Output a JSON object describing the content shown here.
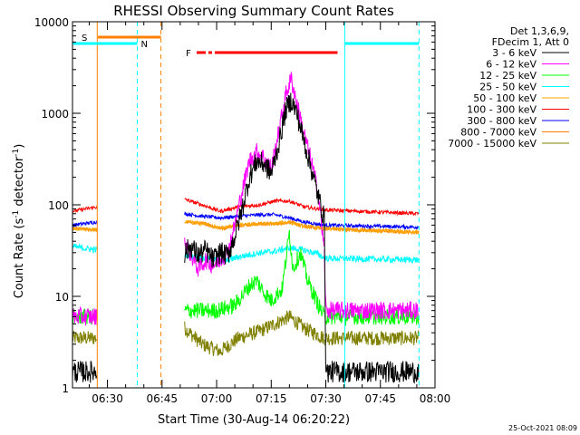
{
  "chart_data": {
    "type": "line",
    "title": "RHESSI Observing Summary Count Rates",
    "xlabel": "Start Time (30-Aug-14 06:20:22)",
    "ylabel_main": "Count Rate (s",
    "ylabel_sup1": "-1",
    "ylabel_mid": " detector",
    "ylabel_sup2": "-1",
    "ylabel_end": ")",
    "x_range_min": [
      20.4,
      120
    ],
    "y_scale": "log",
    "ylim": [
      1,
      10000
    ],
    "x_ticks": [
      {
        "label": "06:30",
        "min": 30
      },
      {
        "label": "06:45",
        "min": 45
      },
      {
        "label": "07:00",
        "min": 60
      },
      {
        "label": "07:15",
        "min": 75
      },
      {
        "label": "07:30",
        "min": 90
      },
      {
        "label": "07:45",
        "min": 105
      },
      {
        "label": "08:00",
        "min": 120
      }
    ],
    "y_ticks": [
      {
        "label": "1",
        "v": 1
      },
      {
        "label": "10",
        "v": 10
      },
      {
        "label": "100",
        "v": 100
      },
      {
        "label": "1000",
        "v": 1000
      },
      {
        "label": "10000",
        "v": 10000
      }
    ],
    "legend_header": [
      "Det 1,3,6,9,",
      "FDecim 1, Att 0"
    ],
    "legend_placement": "right",
    "series": [
      {
        "name": "3 - 6 keV",
        "color": "#000000"
      },
      {
        "name": "6 - 12 keV",
        "color": "#ff00ff"
      },
      {
        "name": "12 - 25 keV",
        "color": "#00ff00"
      },
      {
        "name": "25 - 50 keV",
        "color": "#00ffff"
      },
      {
        "name": "50 - 100 keV",
        "color": "#ffa500"
      },
      {
        "name": "100 - 300 keV",
        "color": "#ff0000"
      },
      {
        "name": "300 - 800 keV",
        "color": "#0000ff"
      },
      {
        "name": "800 - 7000 keV",
        "color": "#ff8000"
      },
      {
        "name": "7000 - 15000 keV",
        "color": "#808000"
      }
    ],
    "segments": [
      {
        "from": 20.4,
        "to": 27.2
      },
      {
        "from": 51.2,
        "to": 89.6
      },
      {
        "from": 89.6,
        "to": 115.6
      }
    ],
    "data": {
      "3 - 6 keV": [
        [
          20.4,
          1.5
        ],
        [
          27.2,
          1.5
        ],
        [
          51.2,
          30
        ],
        [
          53,
          35
        ],
        [
          55,
          28
        ],
        [
          57,
          32
        ],
        [
          59,
          25
        ],
        [
          61,
          30
        ],
        [
          63,
          28
        ],
        [
          65,
          45
        ],
        [
          67,
          90
        ],
        [
          69,
          200
        ],
        [
          71,
          300
        ],
        [
          73,
          280
        ],
        [
          75,
          220
        ],
        [
          77,
          450
        ],
        [
          79,
          1100
        ],
        [
          80.5,
          1400
        ],
        [
          82,
          1000
        ],
        [
          84,
          500
        ],
        [
          86,
          250
        ],
        [
          88,
          120
        ],
        [
          89.6,
          70
        ],
        [
          90,
          1.5
        ],
        [
          115.6,
          1.5
        ]
      ],
      "6 - 12 keV": [
        [
          20.4,
          6
        ],
        [
          27.2,
          6
        ],
        [
          51.2,
          40
        ],
        [
          53,
          28
        ],
        [
          55,
          20
        ],
        [
          57,
          25
        ],
        [
          59,
          22
        ],
        [
          61,
          25
        ],
        [
          63,
          30
        ],
        [
          65,
          60
        ],
        [
          67,
          140
        ],
        [
          69,
          300
        ],
        [
          71,
          380
        ],
        [
          73,
          330
        ],
        [
          75,
          250
        ],
        [
          77,
          600
        ],
        [
          79,
          1600
        ],
        [
          80.5,
          2400
        ],
        [
          82,
          1300
        ],
        [
          84,
          600
        ],
        [
          86,
          300
        ],
        [
          88,
          130
        ],
        [
          89.6,
          30
        ],
        [
          90,
          7
        ],
        [
          115.6,
          7
        ]
      ],
      "12 - 25 keV": [
        [
          20.4,
          6
        ],
        [
          27.2,
          6
        ],
        [
          51.2,
          7
        ],
        [
          60,
          7
        ],
        [
          65,
          8
        ],
        [
          69,
          13
        ],
        [
          71,
          15
        ],
        [
          73,
          11
        ],
        [
          75,
          9
        ],
        [
          78,
          12
        ],
        [
          80,
          50
        ],
        [
          81,
          20
        ],
        [
          83,
          30
        ],
        [
          85,
          15
        ],
        [
          88,
          8
        ],
        [
          89.6,
          6
        ],
        [
          115.6,
          6
        ]
      ],
      "25 - 50 keV": [
        [
          20.4,
          35
        ],
        [
          27.2,
          32
        ],
        [
          51.2,
          28
        ],
        [
          58,
          26
        ],
        [
          62,
          24
        ],
        [
          66,
          27
        ],
        [
          72,
          30
        ],
        [
          76,
          31
        ],
        [
          80,
          34
        ],
        [
          84,
          32
        ],
        [
          88,
          29
        ],
        [
          89.6,
          26
        ],
        [
          115.6,
          25
        ]
      ],
      "50 - 100 keV": [
        [
          20.4,
          55
        ],
        [
          27.2,
          53
        ],
        [
          51.2,
          65
        ],
        [
          57,
          62
        ],
        [
          61,
          55
        ],
        [
          66,
          60
        ],
        [
          72,
          62
        ],
        [
          76,
          62
        ],
        [
          80,
          65
        ],
        [
          84,
          58
        ],
        [
          89.6,
          55
        ],
        [
          115.6,
          50
        ]
      ],
      "100 - 300 keV": [
        [
          20.4,
          85
        ],
        [
          27.2,
          95
        ],
        [
          51.2,
          115
        ],
        [
          56,
          100
        ],
        [
          61,
          85
        ],
        [
          66,
          95
        ],
        [
          72,
          100
        ],
        [
          76,
          110
        ],
        [
          80,
          110
        ],
        [
          84,
          95
        ],
        [
          89.6,
          88
        ],
        [
          115.6,
          80
        ]
      ],
      "300 - 800 keV": [
        [
          20.4,
          60
        ],
        [
          27.2,
          65
        ],
        [
          51.2,
          80
        ],
        [
          56,
          75
        ],
        [
          61,
          72
        ],
        [
          66,
          75
        ],
        [
          72,
          78
        ],
        [
          76,
          78
        ],
        [
          80,
          72
        ],
        [
          84,
          65
        ],
        [
          89.6,
          60
        ],
        [
          115.6,
          57
        ]
      ],
      "800 - 7000 keV": [
        [
          20.4,
          55
        ],
        [
          27.2,
          53
        ],
        [
          51.2,
          65
        ],
        [
          57,
          62
        ],
        [
          61,
          55
        ],
        [
          66,
          60
        ],
        [
          72,
          62
        ],
        [
          76,
          62
        ],
        [
          80,
          65
        ],
        [
          84,
          58
        ],
        [
          89.6,
          55
        ],
        [
          115.6,
          50
        ]
      ],
      "7000 - 15000 keV": [
        [
          20.4,
          3.5
        ],
        [
          27.2,
          3.5
        ],
        [
          51.2,
          4.5
        ],
        [
          56,
          3
        ],
        [
          61,
          2.5
        ],
        [
          66,
          3.5
        ],
        [
          72,
          4.2
        ],
        [
          76,
          5
        ],
        [
          80,
          6
        ],
        [
          84,
          4.5
        ],
        [
          89.6,
          3.5
        ],
        [
          115.6,
          3.5
        ]
      ]
    },
    "attenuator_bar": {
      "label": "S",
      "from": 20.4,
      "to": 44.7,
      "color": "#ff8000"
    },
    "night_bars": [
      {
        "from": 20.4,
        "to": 38.2,
        "color": "#00ffff"
      },
      {
        "from": 95.2,
        "to": 115.6,
        "color": "#00ffff"
      }
    ],
    "night_label": "N",
    "flare_bar": {
      "label": "F",
      "from": 54.5,
      "to": 93.2,
      "color": "#ff0000"
    },
    "vlines": [
      {
        "at": 27.2,
        "color": "#ff8000",
        "style": "solid"
      },
      {
        "at": 38.2,
        "color": "#00ffff",
        "style": "dashed"
      },
      {
        "at": 44.7,
        "color": "#ff8000",
        "style": "dashed"
      },
      {
        "at": 95.2,
        "color": "#00ffff",
        "style": "solid"
      },
      {
        "at": 115.6,
        "color": "#00ffff",
        "style": "dashed"
      }
    ],
    "timestamp": "25-Oct-2021 08:09"
  }
}
